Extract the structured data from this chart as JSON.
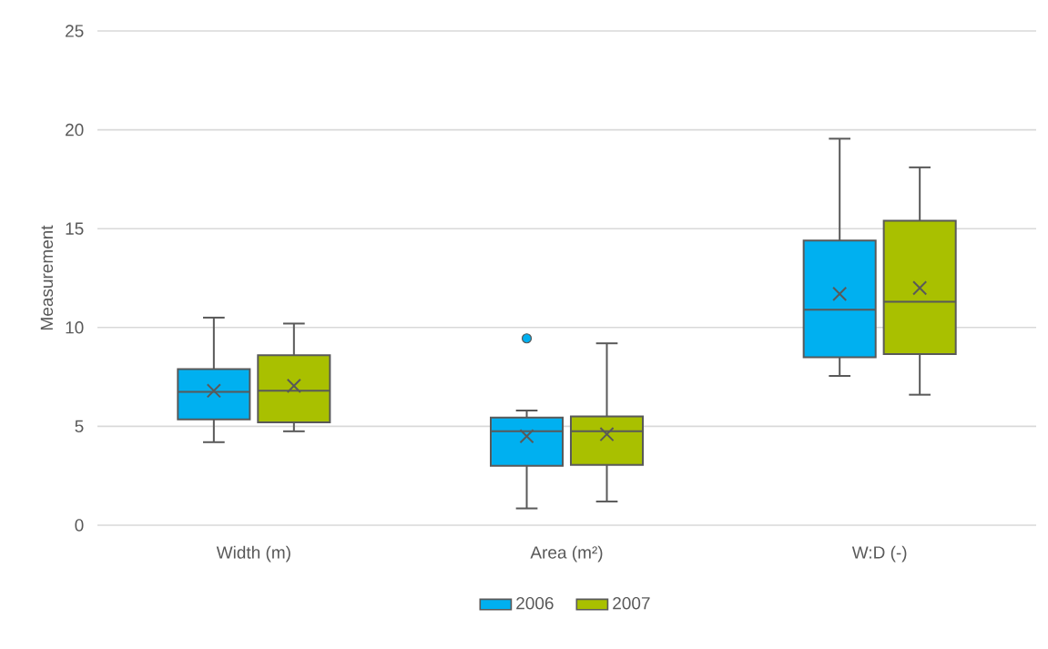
{
  "chart_data": {
    "type": "box",
    "ylabel": "Measurement",
    "categories": [
      "Width (m)",
      "Area (m²)",
      "W:D (-)"
    ],
    "series": [
      {
        "name": "2006",
        "color": "#00b0f0",
        "boxes": [
          {
            "low": 4.2,
            "q1": 5.35,
            "median": 6.75,
            "q3": 7.9,
            "high": 10.5,
            "mean": 6.8
          },
          {
            "low": 0.85,
            "q1": 3.0,
            "median": 4.75,
            "q3": 5.45,
            "high": 5.8,
            "mean": 4.5,
            "outliers": [
              9.45
            ]
          },
          {
            "low": 7.55,
            "q1": 8.5,
            "median": 10.9,
            "q3": 14.4,
            "high": 19.55,
            "mean": 11.7
          }
        ]
      },
      {
        "name": "2007",
        "color": "#a9c000",
        "boxes": [
          {
            "low": 4.75,
            "q1": 5.2,
            "median": 6.8,
            "q3": 8.6,
            "high": 10.2,
            "mean": 7.05
          },
          {
            "low": 1.2,
            "q1": 3.05,
            "median": 4.75,
            "q3": 5.5,
            "high": 9.2,
            "mean": 4.6
          },
          {
            "low": 6.6,
            "q1": 8.65,
            "median": 11.3,
            "q3": 15.4,
            "high": 18.1,
            "mean": 12.0
          }
        ]
      }
    ],
    "ylim": [
      0,
      25
    ],
    "yticks": [
      0,
      5,
      10,
      15,
      20,
      25
    ],
    "grid": "y",
    "legend": "bottom"
  }
}
